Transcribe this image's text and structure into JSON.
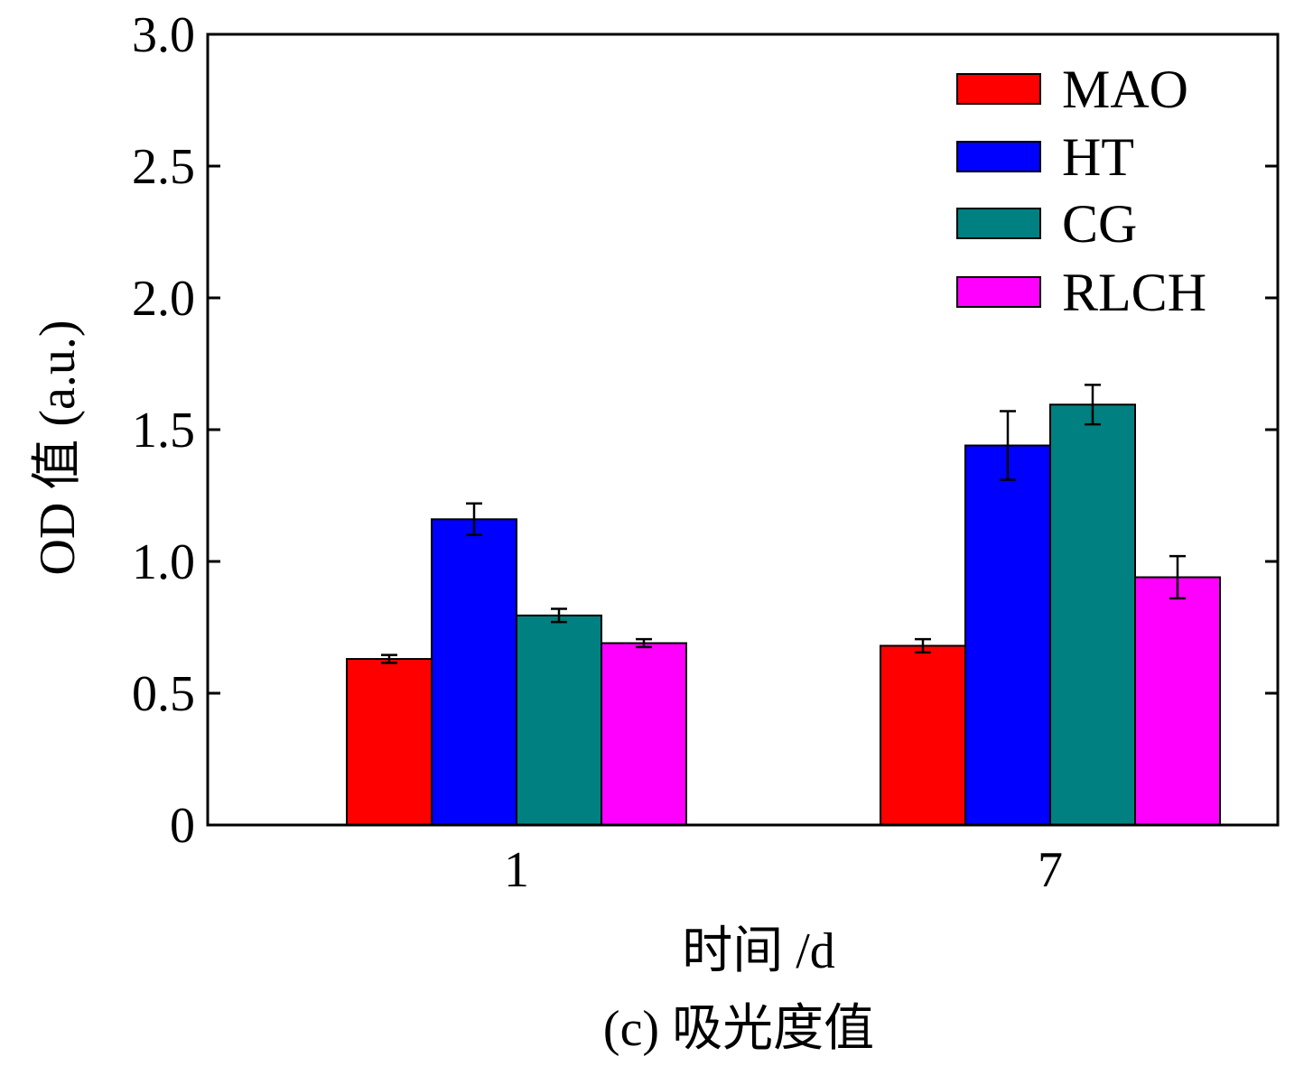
{
  "chart_data": {
    "type": "bar",
    "categories": [
      "1",
      "7"
    ],
    "series": [
      {
        "name": "MAO",
        "color": "#ff0000",
        "values": [
          0.63,
          0.68
        ],
        "errors": [
          0.015,
          0.025
        ]
      },
      {
        "name": "HT",
        "color": "#0000ff",
        "values": [
          1.16,
          1.44
        ],
        "errors": [
          0.06,
          0.13
        ]
      },
      {
        "name": "CG",
        "color": "#008080",
        "values": [
          0.795,
          1.595
        ],
        "errors": [
          0.025,
          0.075
        ]
      },
      {
        "name": "RLCH",
        "color": "#ff00ff",
        "values": [
          0.69,
          0.94
        ],
        "errors": [
          0.015,
          0.08
        ]
      }
    ],
    "xlabel": "时间 /d",
    "ylabel": "OD 值 (a.u.)",
    "ylim": [
      0,
      3.0
    ],
    "yticks": [
      0,
      0.5,
      1.0,
      1.5,
      2.0,
      2.5,
      3.0
    ],
    "ytick_labels": [
      "0",
      "0.5",
      "1.0",
      "1.5",
      "2.0",
      "2.5",
      "3.0"
    ],
    "caption": "(c) 吸光度值",
    "legend_position": "top-right",
    "grid": false
  }
}
